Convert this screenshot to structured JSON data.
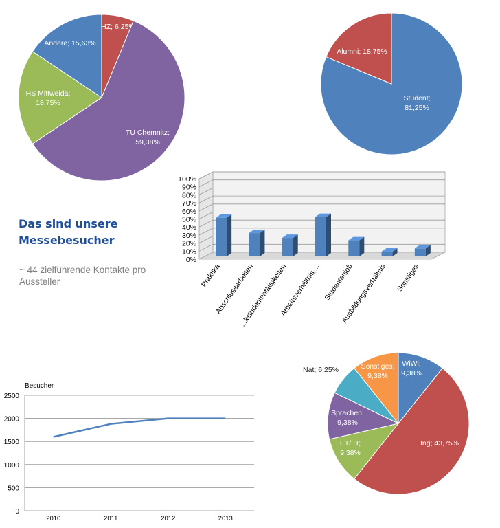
{
  "headline": {
    "line1": "Das sind unsere",
    "line2": "Messebesucher"
  },
  "subtext": {
    "line1": "~ 44 zielführende Kontakte pro",
    "line2": "Aussteller"
  },
  "chart_data": [
    {
      "type": "pie",
      "start": "top",
      "direction": "clockwise",
      "slices": [
        {
          "label": "WHZ; 6,25%",
          "value": 6.25,
          "color": "#c0504d"
        },
        {
          "label": "TU Chemnitz; 59,38%",
          "value": 59.38,
          "color": "#8064a2"
        },
        {
          "label": "HS Mittweida; 18,75%",
          "value": 18.75,
          "color": "#9bbb59"
        },
        {
          "label": "Andere; 15,63%",
          "value": 15.63,
          "color": "#4f81bd"
        }
      ]
    },
    {
      "type": "pie",
      "start": "top",
      "direction": "clockwise",
      "slices": [
        {
          "label": "Student; 81,25%",
          "value": 81.25,
          "color": "#4f81bd"
        },
        {
          "label": "Alumni; 18,75%",
          "value": 18.75,
          "color": "#c0504d"
        }
      ]
    },
    {
      "type": "bar",
      "style": "3d",
      "categories": [
        "Praktika",
        "Abschlussarbeiten",
        "...kstudententätigkeiten",
        "Arbeitsverhältnis,...",
        "Studentenjob",
        "Ausbildungsverhältnis",
        "Sonstiges"
      ],
      "values": [
        48,
        29,
        23,
        49,
        20,
        6,
        10
      ],
      "ylim": [
        0,
        100
      ],
      "yticks": [
        "0%",
        "10%",
        "20%",
        "30%",
        "40%",
        "50%",
        "60%",
        "70%",
        "80%",
        "90%",
        "100%"
      ],
      "grid": true,
      "legend": "none",
      "color": "#4f81bd"
    },
    {
      "type": "line",
      "title": "Besucher",
      "x": [
        "2010",
        "2011",
        "2012",
        "2013"
      ],
      "values": [
        1600,
        1880,
        2000,
        2000
      ],
      "ylim": [
        0,
        2500
      ],
      "yticks": [
        "0",
        "500",
        "1000",
        "1500",
        "2000",
        "2500"
      ],
      "grid": true,
      "color": "#4f81bd"
    },
    {
      "type": "pie",
      "start": "top",
      "direction": "clockwise",
      "slices": [
        {
          "label": "WiWi; 9,38%",
          "value": 9.38,
          "color": "#4f81bd"
        },
        {
          "label": "Ing; 43,75%",
          "value": 43.75,
          "color": "#c0504d"
        },
        {
          "label": "ET/ IT; 9,38%",
          "value": 9.38,
          "color": "#9bbb59"
        },
        {
          "label": "Sprachen; 9,38%",
          "value": 9.38,
          "color": "#8064a2"
        },
        {
          "label": "Nat; 6,25%",
          "value": 6.25,
          "color": "#4bacc6"
        },
        {
          "label": "Sonstiges; 9,38%",
          "value": 9.38,
          "color": "#f79646"
        }
      ]
    }
  ]
}
